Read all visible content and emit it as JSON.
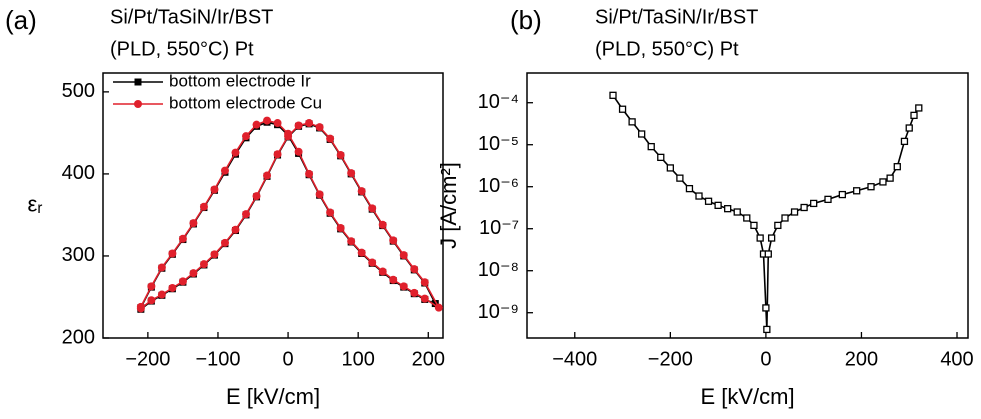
{
  "chart_data": [
    {
      "type": "line",
      "panel_label": "(a)",
      "title": "Si/Pt/TaSiN/Ir/BST",
      "subtitle": "(PLD, 550°C) Pt",
      "xlabel": "E [kV/cm]",
      "ylabel": "εᵣ",
      "xlim": [
        -264,
        221
      ],
      "ylim": [
        200,
        523
      ],
      "xticks": [
        {
          "value": -200,
          "label": "−200"
        },
        {
          "value": -100,
          "label": "−100"
        },
        0,
        100,
        200
      ],
      "yticks": [
        200,
        300,
        400,
        500
      ],
      "yscale": "linear",
      "legend": "upper left",
      "series": [
        {
          "name": "bottom electrode Ir",
          "color": "#000000",
          "marker": "square",
          "x": [
            -210,
            -195,
            -180,
            -165,
            -150,
            -135,
            -120,
            -105,
            -90,
            -75,
            -60,
            -45,
            -30,
            -15,
            0,
            15,
            30,
            45,
            60,
            75,
            90,
            105,
            120,
            135,
            150,
            165,
            180,
            195,
            210,
            195,
            180,
            165,
            150,
            135,
            120,
            105,
            90,
            75,
            60,
            45,
            30,
            15,
            0,
            -15,
            -30,
            -45,
            -60,
            -75,
            -90,
            -105,
            -120,
            -135,
            -150,
            -165,
            -180,
            -195,
            -210
          ],
          "values": [
            235,
            245,
            252,
            260,
            268,
            278,
            289,
            301,
            315,
            331,
            350,
            372,
            397,
            423,
            445,
            458,
            461,
            456,
            442,
            422,
            400,
            378,
            357,
            337,
            318,
            300,
            283,
            267,
            242,
            247,
            254,
            262,
            270,
            280,
            291,
            303,
            317,
            333,
            352,
            374,
            399,
            425,
            447,
            460,
            463,
            458,
            444,
            424,
            402,
            380,
            359,
            339,
            320,
            302,
            285,
            262,
            237
          ]
        },
        {
          "name": "bottom electrode Cu",
          "color": "#e0202c",
          "marker": "circle",
          "x": [
            -210,
            -195,
            -180,
            -165,
            -150,
            -135,
            -120,
            -105,
            -90,
            -75,
            -60,
            -45,
            -30,
            -15,
            0,
            15,
            30,
            45,
            60,
            75,
            90,
            105,
            120,
            135,
            150,
            165,
            180,
            195,
            215,
            195,
            180,
            165,
            150,
            135,
            120,
            105,
            90,
            75,
            60,
            45,
            30,
            15,
            0,
            -15,
            -30,
            -45,
            -60,
            -75,
            -90,
            -105,
            -120,
            -135,
            -150,
            -165,
            -180,
            -195,
            -210
          ],
          "values": [
            236,
            246,
            253,
            261,
            269,
            279,
            290,
            302,
            316,
            332,
            351,
            373,
            398,
            424,
            446,
            459,
            462,
            457,
            443,
            423,
            401,
            379,
            358,
            338,
            319,
            301,
            284,
            268,
            237,
            248,
            255,
            263,
            271,
            281,
            292,
            304,
            318,
            334,
            353,
            375,
            400,
            427,
            449,
            462,
            465,
            460,
            446,
            426,
            404,
            381,
            360,
            340,
            321,
            303,
            286,
            263,
            238
          ]
        }
      ]
    },
    {
      "type": "line",
      "panel_label": "(b)",
      "title": "Si/Pt/TaSiN/Ir/BST",
      "subtitle": "(PLD, 550°C) Pt",
      "xlabel": "E [kV/cm]",
      "ylabel": "J [A/cm²]",
      "xlim": [
        -500,
        423
      ],
      "ylim": [
        2.5e-10,
        0.00051
      ],
      "xticks": [
        {
          "value": -400,
          "label": "−400"
        },
        {
          "value": -200,
          "label": "−200"
        },
        0,
        200,
        400
      ],
      "yticks": [
        {
          "value": 1e-09,
          "label": "10⁻⁹"
        },
        {
          "value": 1e-08,
          "label": "10⁻⁸"
        },
        {
          "value": 1e-07,
          "label": "10⁻⁷"
        },
        {
          "value": 1e-06,
          "label": "10⁻⁶"
        },
        {
          "value": 1e-05,
          "label": "10⁻⁵"
        },
        {
          "value": 0.0001,
          "label": "10⁻⁴"
        }
      ],
      "yscale": "log",
      "series": [
        {
          "color": "#000000",
          "marker": "open-square",
          "x": [
            -320,
            -300,
            -280,
            -260,
            -240,
            -220,
            -200,
            -180,
            -160,
            -140,
            -120,
            -100,
            -80,
            -60,
            -40,
            -25,
            -12,
            -5,
            0,
            2,
            5,
            12,
            25,
            40,
            60,
            80,
            100,
            130,
            160,
            190,
            220,
            245,
            260,
            275,
            290,
            300,
            310,
            320
          ],
          "values": [
            0.00015,
            7e-05,
            3.5e-05,
            1.8e-05,
            9e-06,
            5e-06,
            2.8e-06,
            1.6e-06,
            9e-07,
            6e-07,
            4.5e-07,
            3.6e-07,
            3e-07,
            2.5e-07,
            1.8e-07,
            1.2e-07,
            6e-08,
            2.5e-08,
            1.3e-09,
            4e-10,
            2.5e-08,
            6e-08,
            1.2e-07,
            1.8e-07,
            2.5e-07,
            3.2e-07,
            4e-07,
            5e-07,
            6.5e-07,
            8e-07,
            1e-06,
            1.3e-06,
            1.6e-06,
            3e-06,
            1.2e-05,
            2.5e-05,
            5e-05,
            7.5e-05
          ]
        }
      ]
    }
  ]
}
